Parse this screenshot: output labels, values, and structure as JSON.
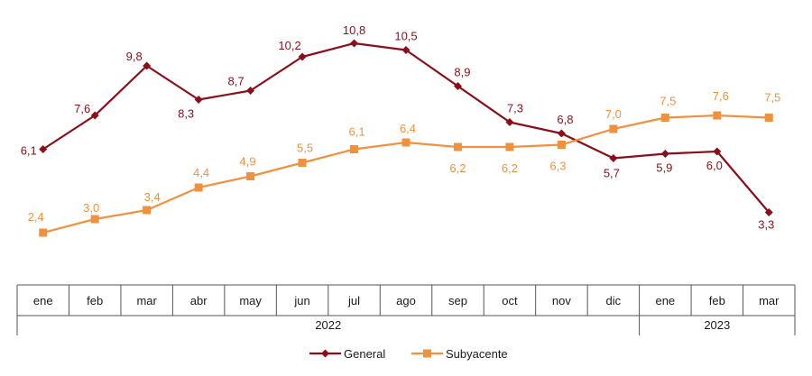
{
  "chart_data": {
    "type": "line",
    "categories": [
      "ene",
      "feb",
      "mar",
      "abr",
      "may",
      "jun",
      "jul",
      "ago",
      "sep",
      "oct",
      "nov",
      "dic",
      "ene",
      "feb",
      "mar"
    ],
    "groups": [
      {
        "label": "2022",
        "span": 12
      },
      {
        "label": "2023",
        "span": 3
      }
    ],
    "series": [
      {
        "name": "General",
        "color": "#8b0f1a",
        "marker": "diamond",
        "values": [
          6.1,
          7.6,
          9.8,
          8.3,
          8.7,
          10.2,
          10.8,
          10.5,
          8.9,
          7.3,
          6.8,
          5.7,
          5.9,
          6.0,
          3.3
        ],
        "labels": [
          "6,1",
          "7,6",
          "9,8",
          "8,3",
          "8,7",
          "10,2",
          "10,8",
          "10,5",
          "8,9",
          "7,3",
          "6,8",
          "5,7",
          "5,9",
          "6,0",
          "3,3"
        ]
      },
      {
        "name": "Subyacente",
        "color": "#f0913e",
        "marker": "square",
        "values": [
          2.4,
          3.0,
          3.4,
          4.4,
          4.9,
          5.5,
          6.1,
          6.4,
          6.2,
          6.2,
          6.3,
          7.0,
          7.5,
          7.6,
          7.5
        ],
        "labels": [
          "2,4",
          "3,0",
          "3,4",
          "4,4",
          "4,9",
          "5,5",
          "6,1",
          "6,4",
          "6,2",
          "6,2",
          "6,3",
          "7,0",
          "7,5",
          "7,6",
          "7,5"
        ]
      }
    ],
    "ylim": [
      0,
      12
    ],
    "grid": false,
    "legend_position": "bottom"
  }
}
